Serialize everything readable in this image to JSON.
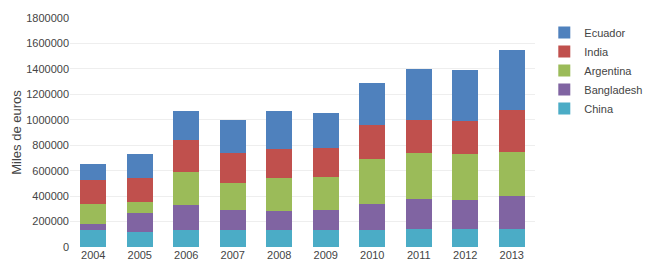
{
  "chart_data": {
    "type": "bar",
    "stacked": true,
    "categories": [
      "2004",
      "2005",
      "2006",
      "2007",
      "2008",
      "2009",
      "2010",
      "2011",
      "2012",
      "2013"
    ],
    "series": [
      {
        "name": "China",
        "color": "#4bacc6",
        "values": [
          130000,
          120000,
          130000,
          130000,
          130000,
          130000,
          130000,
          140000,
          140000,
          140000
        ]
      },
      {
        "name": "Bangladesh",
        "color": "#8064a2",
        "values": [
          50000,
          150000,
          200000,
          160000,
          150000,
          160000,
          210000,
          240000,
          230000,
          260000
        ]
      },
      {
        "name": "Argentina",
        "color": "#9bbb59",
        "values": [
          160000,
          80000,
          260000,
          210000,
          260000,
          260000,
          350000,
          360000,
          360000,
          350000
        ]
      },
      {
        "name": "India",
        "color": "#c0504d",
        "values": [
          190000,
          190000,
          250000,
          240000,
          230000,
          230000,
          270000,
          260000,
          260000,
          330000
        ]
      },
      {
        "name": "Ecuador",
        "color": "#4f81bd",
        "values": [
          120000,
          190000,
          230000,
          260000,
          300000,
          270000,
          330000,
          400000,
          400000,
          470000
        ]
      }
    ],
    "ylabel": "Miles de euros",
    "ylim": [
      0,
      1800000
    ],
    "yticks": [
      0,
      200000,
      400000,
      600000,
      800000,
      1000000,
      1200000,
      1400000,
      1600000,
      1800000
    ],
    "grid": true,
    "legend": "upper right"
  }
}
